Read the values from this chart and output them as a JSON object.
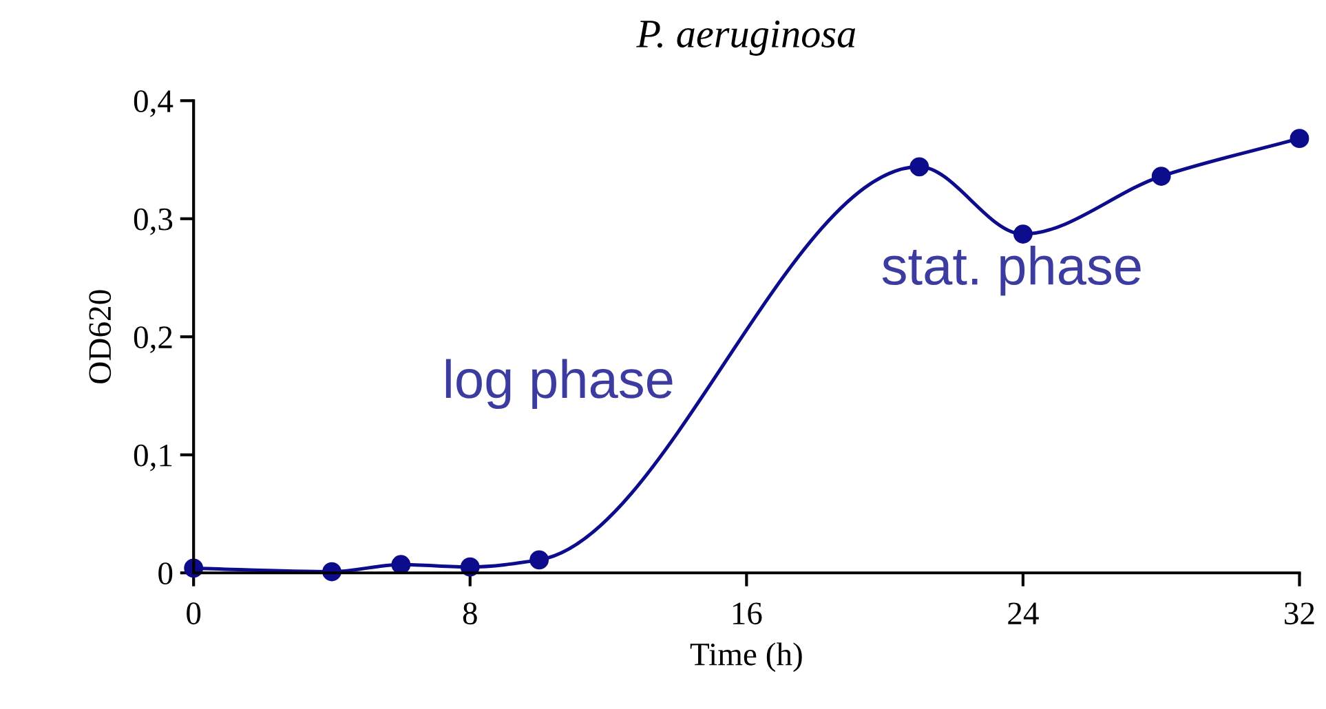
{
  "chart_data": {
    "type": "line",
    "title": "P. aeruginosa",
    "xlabel": "Time (h)",
    "ylabel": "OD620",
    "x": [
      0,
      4,
      6,
      8,
      10,
      21,
      24,
      28,
      32
    ],
    "series": [
      {
        "color": "#0c0c8c",
        "values": [
          0.004,
          0.001,
          0.007,
          0.005,
          0.011,
          0.344,
          0.287,
          0.336,
          0.368
        ]
      }
    ],
    "xlim": [
      0,
      32
    ],
    "xticks": [
      0,
      8,
      16,
      24,
      32
    ],
    "ylim": [
      0,
      0.4
    ],
    "yticks": [
      {
        "value": 0,
        "label": "0"
      },
      {
        "value": 0.1,
        "label": "0,1"
      },
      {
        "value": 0.2,
        "label": "0,2"
      },
      {
        "value": 0.3,
        "label": "0,3"
      },
      {
        "value": 0.4,
        "label": "0,4"
      }
    ],
    "grid": false,
    "marker": "circle",
    "line_style": "solid",
    "annotations": [
      "log phase",
      "stat. phase"
    ]
  }
}
